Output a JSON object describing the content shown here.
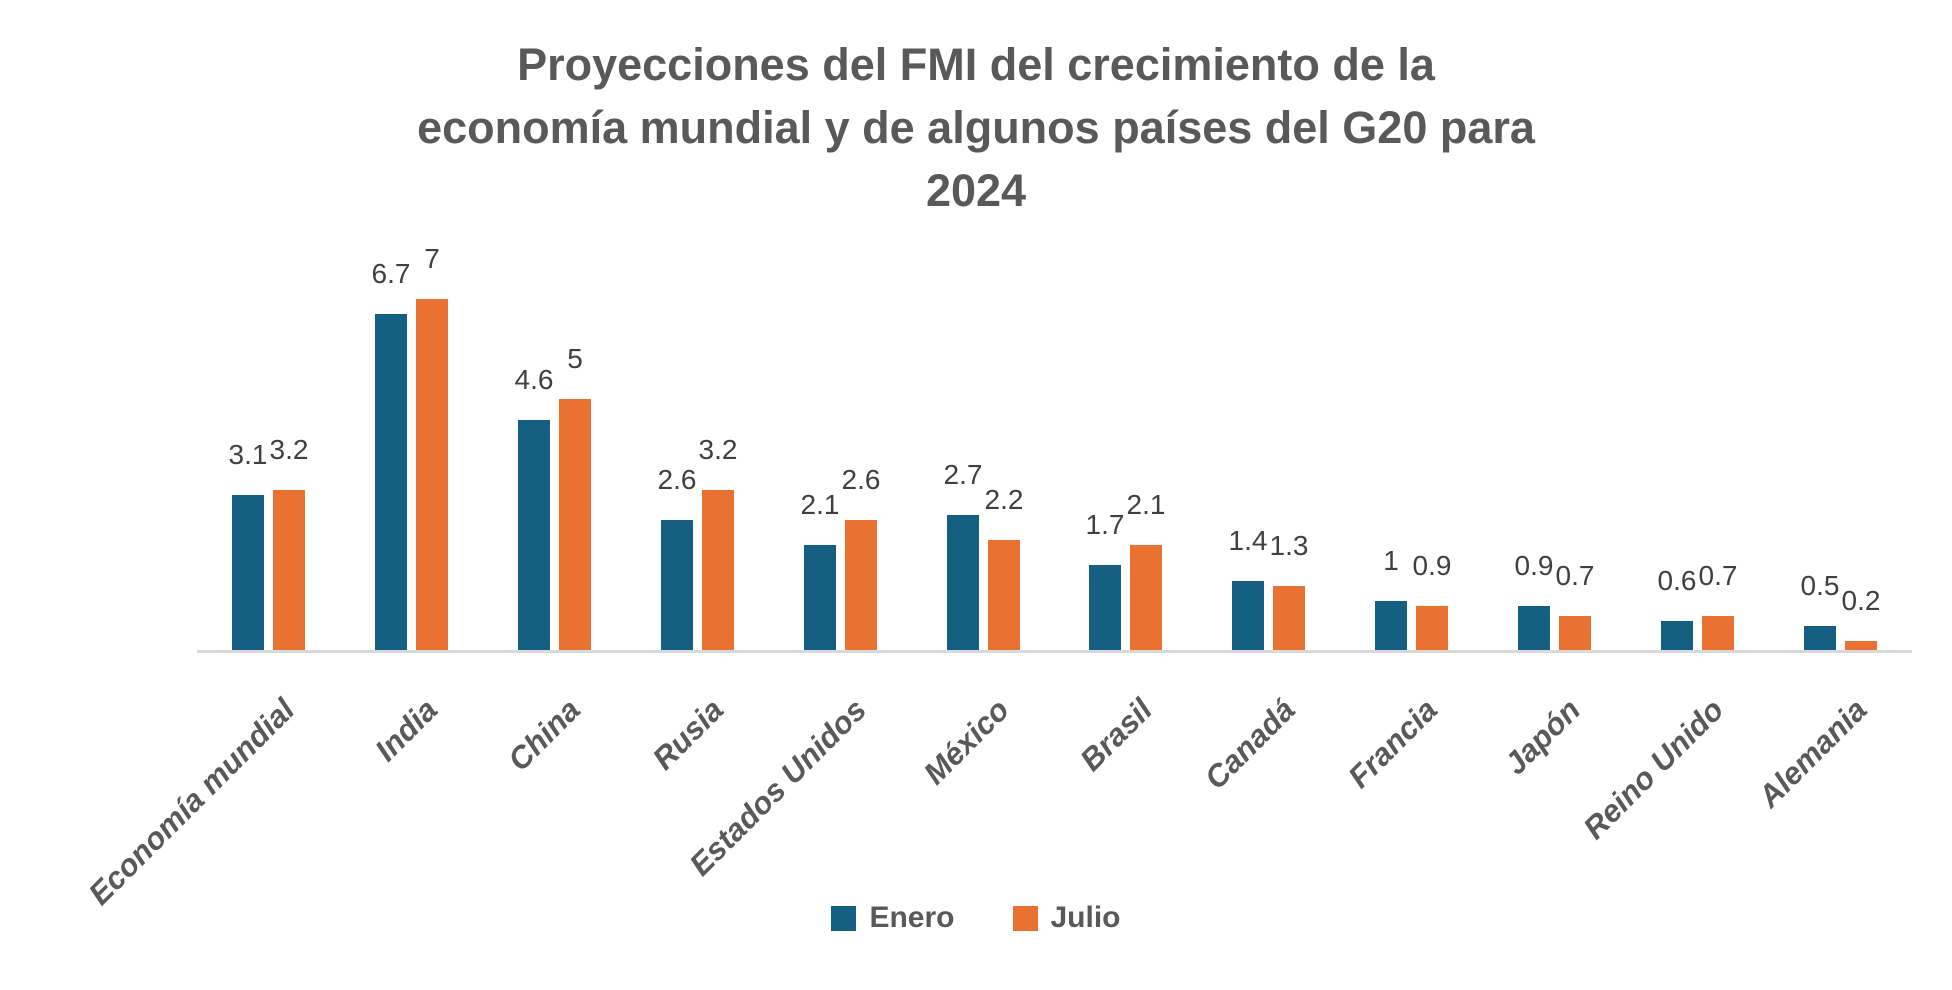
{
  "chart_data": {
    "type": "bar",
    "title": "Proyecciones del FMI del crecimiento de la economía mundial y de algunos países del G20 para 2024",
    "title_lines": [
      "Proyecciones del FMI del crecimiento de la",
      "economía mundial y de algunos países del G20 para",
      "2024"
    ],
    "categories": [
      "Economía mundial",
      "India",
      "China",
      "Rusia",
      "Estados Unidos",
      "México",
      "Brasil",
      "Canadá",
      "Francia",
      "Japón",
      "Reino Unido",
      "Alemania"
    ],
    "series": [
      {
        "name": "Enero",
        "color": "#156082",
        "values": [
          3.1,
          6.7,
          4.6,
          2.6,
          2.1,
          2.7,
          1.7,
          1.4,
          1,
          0.9,
          0.6,
          0.5
        ]
      },
      {
        "name": "Julio",
        "color": "#E97132",
        "values": [
          3.2,
          7,
          5,
          3.2,
          2.6,
          2.2,
          2.1,
          1.3,
          0.9,
          0.7,
          0.7,
          0.2
        ]
      }
    ],
    "ylim": [
      0,
      7.5
    ],
    "grid": false,
    "data_labels": true,
    "legend_position": "bottom",
    "axis_line_color": "#D9D9D9",
    "text_colors": {
      "title": "#595959",
      "data_label": "#404040",
      "category_label": "#595959",
      "legend": "#595959"
    }
  }
}
